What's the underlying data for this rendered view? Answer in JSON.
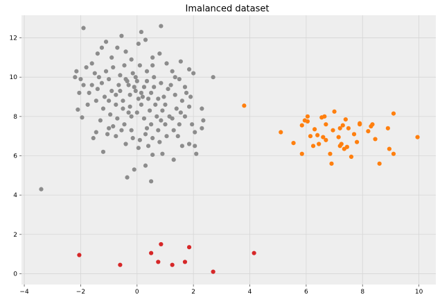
{
  "chart_data": {
    "type": "scatter",
    "title": "Imalanced dataset",
    "xlabel": "",
    "ylabel": "",
    "xlim": [
      -4.1,
      10.6
    ],
    "ylim": [
      -0.55,
      13.15
    ],
    "xticks": [
      -4,
      -2,
      0,
      2,
      4,
      6,
      8,
      10
    ],
    "yticks": [
      0,
      2,
      4,
      6,
      8,
      10,
      12
    ],
    "grid": true,
    "series": [
      {
        "color": "#8c8c8c",
        "points": [
          [
            -3.4,
            4.3
          ],
          [
            -1.9,
            12.5
          ],
          [
            0.85,
            12.6
          ],
          [
            0.15,
            12.3
          ],
          [
            -0.55,
            12.1
          ],
          [
            2.7,
            10.0
          ],
          [
            1.55,
            10.8
          ],
          [
            1.85,
            10.4
          ],
          [
            2.0,
            10.2
          ],
          [
            -2.1,
            8.35
          ],
          [
            -1.95,
            7.95
          ],
          [
            2.3,
            8.4
          ],
          [
            2.35,
            7.8
          ],
          [
            2.3,
            7.4
          ],
          [
            1.95,
            7.6
          ],
          [
            2.05,
            7.2
          ],
          [
            1.6,
            6.5
          ],
          [
            1.85,
            6.6
          ],
          [
            2.05,
            6.5
          ],
          [
            2.1,
            6.1
          ],
          [
            1.3,
            5.8
          ],
          [
            0.9,
            6.1
          ],
          [
            0.55,
            6.05
          ],
          [
            0.3,
            5.5
          ],
          [
            -0.1,
            5.3
          ],
          [
            -0.35,
            4.9
          ],
          [
            0.5,
            4.7
          ],
          [
            -1.2,
            6.2
          ],
          [
            -1.55,
            6.9
          ],
          [
            -1.45,
            7.2
          ],
          [
            -0.75,
            7.0
          ],
          [
            -0.4,
            6.6
          ],
          [
            0.1,
            6.8
          ],
          [
            -2.2,
            10.0
          ],
          [
            -2.15,
            10.3
          ],
          [
            -2.05,
            9.2
          ],
          [
            -2.0,
            9.9
          ],
          [
            -1.8,
            10.5
          ],
          [
            -1.6,
            10.7
          ],
          [
            -1.4,
            11.2
          ],
          [
            -1.25,
            11.5
          ],
          [
            -1.1,
            11.8
          ],
          [
            -0.9,
            11.0
          ],
          [
            -0.7,
            11.5
          ],
          [
            -0.4,
            11.3
          ],
          [
            -0.2,
            10.9
          ],
          [
            0.05,
            11.7
          ],
          [
            0.3,
            11.9
          ],
          [
            0.55,
            11.0
          ],
          [
            0.8,
            11.2
          ],
          [
            1.05,
            10.7
          ],
          [
            1.25,
            10.3
          ],
          [
            1.5,
            9.9
          ],
          [
            1.7,
            9.5
          ],
          [
            1.9,
            9.0
          ],
          [
            1.85,
            8.5
          ],
          [
            1.7,
            8.0
          ],
          [
            1.5,
            7.6
          ],
          [
            1.3,
            7.3
          ],
          [
            1.05,
            7.0
          ],
          [
            0.8,
            6.7
          ],
          [
            0.55,
            6.9
          ],
          [
            0.3,
            7.1
          ],
          [
            0.05,
            6.4
          ],
          [
            -0.2,
            7.3
          ],
          [
            -0.45,
            7.6
          ],
          [
            -0.7,
            7.9
          ],
          [
            -0.95,
            8.1
          ],
          [
            -1.2,
            8.4
          ],
          [
            -1.45,
            8.8
          ],
          [
            -1.7,
            9.2
          ],
          [
            -1.6,
            9.6
          ],
          [
            -1.35,
            10.0
          ],
          [
            -1.1,
            10.3
          ],
          [
            -0.85,
            10.5
          ],
          [
            -0.6,
            10.1
          ],
          [
            -0.35,
            9.8
          ],
          [
            -0.1,
            9.5
          ],
          [
            0.15,
            9.2
          ],
          [
            0.4,
            8.9
          ],
          [
            0.65,
            8.6
          ],
          [
            0.9,
            8.3
          ],
          [
            1.15,
            8.0
          ],
          [
            1.4,
            8.4
          ],
          [
            1.6,
            8.8
          ],
          [
            1.35,
            9.1
          ],
          [
            1.1,
            9.4
          ],
          [
            0.85,
            9.7
          ],
          [
            0.6,
            10.0
          ],
          [
            0.35,
            10.3
          ],
          [
            0.1,
            10.6
          ],
          [
            -0.15,
            10.2
          ],
          [
            -0.4,
            9.9
          ],
          [
            -0.65,
            9.6
          ],
          [
            -0.9,
            9.3
          ],
          [
            -1.15,
            9.0
          ],
          [
            -1.4,
            9.4
          ],
          [
            -1.25,
            9.7
          ],
          [
            -1.0,
            9.9
          ],
          [
            -0.75,
            9.1
          ],
          [
            -0.5,
            8.8
          ],
          [
            -0.25,
            8.5
          ],
          [
            0.0,
            8.2
          ],
          [
            0.25,
            7.9
          ],
          [
            0.5,
            7.6
          ],
          [
            0.75,
            7.3
          ],
          [
            1.0,
            7.6
          ],
          [
            1.25,
            7.9
          ],
          [
            1.0,
            8.6
          ],
          [
            0.75,
            8.9
          ],
          [
            0.5,
            9.2
          ],
          [
            0.25,
            9.5
          ],
          [
            0.0,
            9.8
          ],
          [
            -0.25,
            9.1
          ],
          [
            -0.5,
            8.4
          ],
          [
            -0.75,
            8.6
          ],
          [
            -1.0,
            8.8
          ],
          [
            -0.2,
            8.0
          ],
          [
            0.15,
            8.6
          ],
          [
            0.45,
            8.3
          ],
          [
            0.7,
            8.0
          ],
          [
            0.95,
            9.0
          ],
          [
            1.2,
            9.6
          ],
          [
            -0.05,
            9.3
          ],
          [
            -0.3,
            9.6
          ],
          [
            0.2,
            9.0
          ],
          [
            -0.6,
            9.3
          ],
          [
            0.6,
            9.5
          ],
          [
            -0.85,
            7.5
          ],
          [
            -1.05,
            7.1
          ],
          [
            -0.55,
            7.3
          ],
          [
            0.35,
            7.4
          ],
          [
            0.85,
            7.8
          ],
          [
            1.45,
            7.0
          ],
          [
            -1.3,
            7.8
          ],
          [
            -1.75,
            8.6
          ],
          [
            -1.9,
            9.6
          ],
          [
            -1.5,
            10.2
          ],
          [
            -0.45,
            10.6
          ],
          [
            0.55,
            10.6
          ],
          [
            1.35,
            10.0
          ],
          [
            1.75,
            9.2
          ],
          [
            1.55,
            8.2
          ],
          [
            0.4,
            6.5
          ],
          [
            -0.15,
            6.9
          ],
          [
            -1.0,
            7.4
          ],
          [
            -0.3,
            8.2
          ],
          [
            0.05,
            8.9
          ],
          [
            0.35,
            9.8
          ],
          [
            -0.05,
            10.0
          ]
        ]
      },
      {
        "color": "#ff7f0e",
        "points": [
          [
            3.8,
            8.55
          ],
          [
            5.1,
            7.2
          ],
          [
            5.55,
            6.65
          ],
          [
            5.85,
            6.1
          ],
          [
            5.85,
            7.55
          ],
          [
            5.95,
            7.8
          ],
          [
            6.05,
            8.0
          ],
          [
            6.15,
            7.0
          ],
          [
            6.25,
            6.5
          ],
          [
            6.3,
            7.35
          ],
          [
            6.45,
            6.6
          ],
          [
            6.55,
            7.95
          ],
          [
            6.6,
            6.95
          ],
          [
            6.65,
            8.0
          ],
          [
            6.7,
            7.6
          ],
          [
            6.85,
            6.1
          ],
          [
            6.9,
            5.6
          ],
          [
            6.95,
            7.3
          ],
          [
            7.0,
            8.25
          ],
          [
            7.15,
            6.95
          ],
          [
            7.2,
            7.4
          ],
          [
            7.25,
            6.6
          ],
          [
            7.3,
            7.55
          ],
          [
            7.35,
            6.35
          ],
          [
            7.4,
            7.85
          ],
          [
            7.45,
            6.45
          ],
          [
            7.5,
            7.4
          ],
          [
            7.6,
            5.95
          ],
          [
            7.7,
            7.1
          ],
          [
            7.8,
            6.7
          ],
          [
            7.9,
            7.6
          ],
          [
            8.2,
            7.25
          ],
          [
            8.3,
            7.5
          ],
          [
            8.45,
            6.85
          ],
          [
            8.6,
            5.6
          ],
          [
            8.9,
            7.4
          ],
          [
            8.95,
            6.35
          ],
          [
            9.1,
            6.1
          ],
          [
            9.1,
            8.15
          ],
          [
            9.95,
            6.95
          ],
          [
            6.05,
            7.75
          ],
          [
            7.9,
            7.65
          ],
          [
            8.35,
            7.6
          ],
          [
            6.7,
            6.8
          ],
          [
            7.2,
            6.5
          ],
          [
            6.4,
            7.05
          ]
        ]
      },
      {
        "color": "#d62728",
        "points": [
          [
            -2.05,
            0.95
          ],
          [
            -0.6,
            0.45
          ],
          [
            0.5,
            1.05
          ],
          [
            0.75,
            0.6
          ],
          [
            0.85,
            1.5
          ],
          [
            1.25,
            0.45
          ],
          [
            1.7,
            0.6
          ],
          [
            1.85,
            1.35
          ],
          [
            2.7,
            0.1
          ],
          [
            4.15,
            1.05
          ]
        ]
      }
    ]
  }
}
